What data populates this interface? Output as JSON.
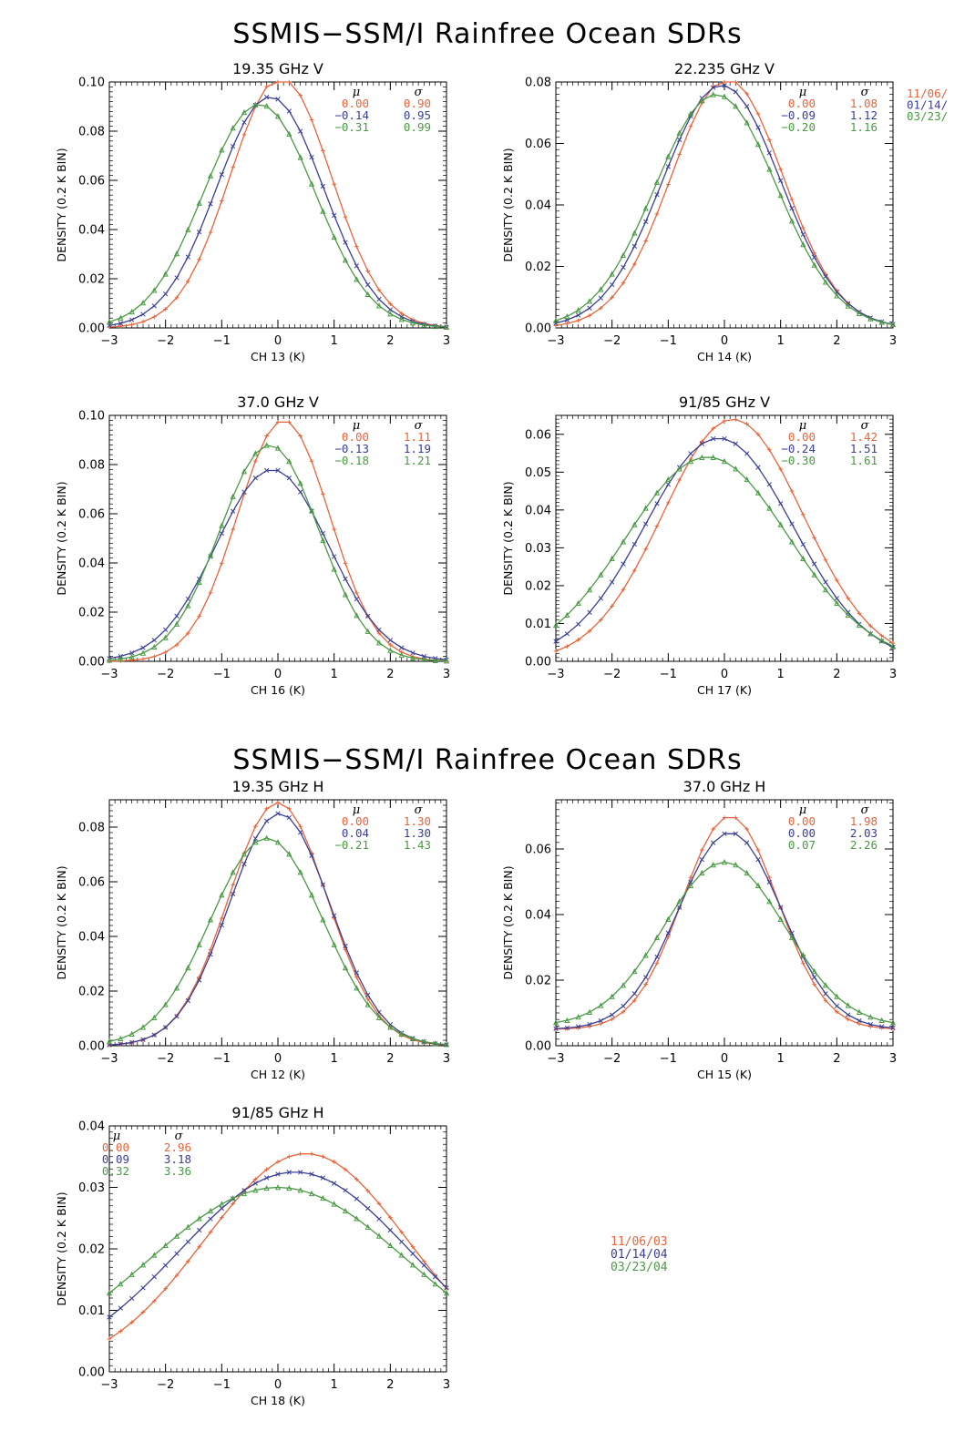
{
  "titles": {
    "top": "SSMIS−SSM/I Rainfree Ocean SDRs",
    "bottom": "SSMIS−SSM/I Rainfree Ocean SDRs"
  },
  "colors": {
    "s1": "#e8643a",
    "s2": "#3a3f96",
    "s3": "#4b9a45"
  },
  "legend": [
    "11/06/03",
    "01/14/04",
    "03/23/04"
  ],
  "stat_headers": [
    "μ",
    "σ"
  ],
  "chart_data": [
    {
      "type": "line",
      "title": "19.35 GHz V",
      "xlabel": "CH 13 (K)",
      "ylabel": "DENSITY (0.2 K BIN)",
      "xlim": [
        -3,
        3
      ],
      "ylim": [
        0,
        0.1
      ],
      "yticks": [
        "0.00",
        "0.02",
        "0.04",
        "0.06",
        "0.08",
        "0.10"
      ],
      "stats_pos": "top-right",
      "series": [
        {
          "name": "11/06/03",
          "mu": "0.00",
          "sigma": "0.90"
        },
        {
          "name": "01/14/04",
          "mu": "−0.14",
          "sigma": "0.95"
        },
        {
          "name": "03/23/04",
          "mu": "−0.31",
          "sigma": "0.99"
        }
      ],
      "peaks": [
        0.102,
        0.094,
        0.091
      ],
      "centers": [
        0.05,
        -0.14,
        -0.33
      ],
      "sigmas": [
        0.9,
        0.95,
        0.99
      ],
      "tails": [
        0.0,
        0.0,
        0.0
      ]
    },
    {
      "type": "line",
      "title": "22.235 GHz V",
      "xlabel": "CH 14 (K)",
      "ylabel": "DENSITY (0.2 K BIN)",
      "xlim": [
        -3,
        3
      ],
      "ylim": [
        0,
        0.08
      ],
      "yticks": [
        "0.00",
        "0.02",
        "0.04",
        "0.06",
        "0.08"
      ],
      "stats_pos": "top-right",
      "side_legend": [
        "11/06/",
        "01/14/",
        "03/23/"
      ],
      "series": [
        {
          "name": "11/06/03",
          "mu": "0.00",
          "sigma": "1.08"
        },
        {
          "name": "01/14/04",
          "mu": "−0.09",
          "sigma": "1.12"
        },
        {
          "name": "03/23/04",
          "mu": "−0.20",
          "sigma": "1.16"
        }
      ],
      "peaks": [
        0.081,
        0.079,
        0.076
      ],
      "centers": [
        0.05,
        -0.05,
        -0.15
      ],
      "sigmas": [
        1.0,
        1.05,
        1.08
      ],
      "tails": [
        0.0,
        0.0,
        0.0
      ]
    },
    {
      "type": "line",
      "title": "37.0 GHz V",
      "xlabel": "CH 16 (K)",
      "ylabel": "DENSITY (0.2 K BIN)",
      "xlim": [
        -3,
        3
      ],
      "ylim": [
        0,
        0.1
      ],
      "yticks": [
        "0.00",
        "0.02",
        "0.04",
        "0.06",
        "0.08",
        "0.10"
      ],
      "stats_pos": "top-right",
      "series": [
        {
          "name": "11/06/03",
          "mu": "0.00",
          "sigma": "1.11"
        },
        {
          "name": "01/14/04",
          "mu": "−0.13",
          "sigma": "1.19"
        },
        {
          "name": "03/23/04",
          "mu": "−0.18",
          "sigma": "1.21"
        }
      ],
      "peaks": [
        0.098,
        0.078,
        0.088
      ],
      "centers": [
        0.1,
        -0.1,
        -0.15
      ],
      "sigmas": [
        0.82,
        1.0,
        0.88
      ],
      "tails": [
        0.0,
        0.0,
        0.0
      ]
    },
    {
      "type": "line",
      "title": "91/85 GHz V",
      "xlabel": "CH 17 (K)",
      "ylabel": "DENSITY (0.2 K BIN)",
      "xlim": [
        -3,
        3
      ],
      "ylim": [
        0,
        0.065
      ],
      "yticks": [
        "0.00",
        "0.01",
        "0.02",
        "0.03",
        "0.04",
        "0.05",
        "0.06"
      ],
      "stats_pos": "top-right",
      "series": [
        {
          "name": "11/06/03",
          "mu": "0.00",
          "sigma": "1.42"
        },
        {
          "name": "01/14/04",
          "mu": "−0.24",
          "sigma": "1.51"
        },
        {
          "name": "03/23/04",
          "mu": "−0.30",
          "sigma": "1.61"
        }
      ],
      "peaks": [
        0.064,
        0.059,
        0.054
      ],
      "centers": [
        0.15,
        -0.1,
        -0.3
      ],
      "sigmas": [
        1.25,
        1.32,
        1.45
      ],
      "tails": [
        0.0,
        0.0,
        0.0
      ]
    },
    {
      "type": "line",
      "title": "19.35 GHz H",
      "xlabel": "CH 12 (K)",
      "ylabel": "DENSITY (0.2 K BIN)",
      "xlim": [
        -3,
        3
      ],
      "ylim": [
        0,
        0.09
      ],
      "yticks": [
        "0.00",
        "0.02",
        "0.04",
        "0.06",
        "0.08"
      ],
      "stats_pos": "top-right",
      "series": [
        {
          "name": "11/06/03",
          "mu": "0.00",
          "sigma": "1.30"
        },
        {
          "name": "01/14/04",
          "mu": "0.04",
          "sigma": "1.30"
        },
        {
          "name": "03/23/04",
          "mu": "−0.21",
          "sigma": "1.43"
        }
      ],
      "peaks": [
        0.089,
        0.085,
        0.076
      ],
      "centers": [
        0.0,
        0.03,
        -0.2
      ],
      "sigmas": [
        0.88,
        0.9,
        1.0
      ],
      "tails": [
        0.0,
        0.0,
        0.0
      ]
    },
    {
      "type": "line",
      "title": "37.0 GHz H",
      "xlabel": "CH 15 (K)",
      "ylabel": "DENSITY (0.2 K BIN)",
      "xlim": [
        -3,
        3
      ],
      "ylim": [
        0,
        0.075
      ],
      "yticks": [
        "0.00",
        "0.02",
        "0.04",
        "0.06"
      ],
      "stats_pos": "top-right",
      "series": [
        {
          "name": "11/06/03",
          "mu": "0.00",
          "sigma": "1.98"
        },
        {
          "name": "01/14/04",
          "mu": "0.00",
          "sigma": "2.03"
        },
        {
          "name": "03/23/04",
          "mu": "0.07",
          "sigma": "2.26"
        }
      ],
      "peaks": [
        0.07,
        0.065,
        0.056
      ],
      "centers": [
        0.1,
        0.1,
        0.0
      ],
      "sigmas": [
        0.85,
        0.92,
        1.08
      ],
      "tails": [
        0.005,
        0.005,
        0.006
      ]
    },
    {
      "type": "line",
      "title": "91/85 GHz H",
      "xlabel": "CH 18 (K)",
      "ylabel": "DENSITY (0.2 K BIN)",
      "xlim": [
        -3,
        3
      ],
      "ylim": [
        0,
        0.04
      ],
      "yticks": [
        "0.00",
        "0.01",
        "0.02",
        "0.03",
        "0.04"
      ],
      "stats_pos": "top-left",
      "series": [
        {
          "name": "11/06/03",
          "mu": "0.00",
          "sigma": "2.96"
        },
        {
          "name": "01/14/04",
          "mu": "0.09",
          "sigma": "3.18"
        },
        {
          "name": "03/23/04",
          "mu": "0.32",
          "sigma": "3.36"
        }
      ],
      "peaks": [
        0.0355,
        0.0325,
        0.03
      ],
      "centers": [
        0.5,
        0.3,
        0.0
      ],
      "sigmas": [
        1.8,
        2.05,
        2.3
      ],
      "tails": [
        0.0,
        0.0,
        0.0
      ]
    }
  ]
}
